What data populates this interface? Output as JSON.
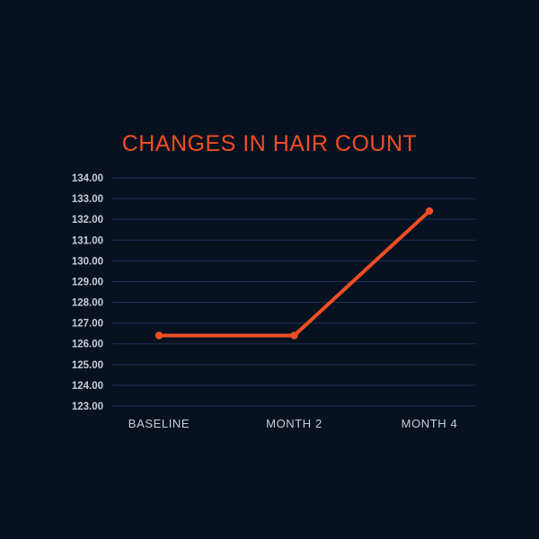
{
  "title": "CHANGES IN HAIR COUNT",
  "colors": {
    "background": "#081120",
    "accent": "#f04e24",
    "gridline": "#1c2e52",
    "ytick_label": "#c7ccd5",
    "xtick_label": "#c9ced6"
  },
  "chart_data": {
    "type": "line",
    "title": "CHANGES IN HAIR COUNT",
    "categories": [
      "BASELINE",
      "MONTH 2",
      "MONTH 4"
    ],
    "series": [
      {
        "name": "hair count",
        "values": [
          126.4,
          126.4,
          132.4
        ]
      }
    ],
    "xlabel": "",
    "ylabel": "",
    "ylim": [
      123,
      134
    ],
    "ytick_step": 1,
    "ytick_decimals": 2,
    "ytick_labels": [
      "123.00",
      "124.00",
      "125.00",
      "126.00",
      "127.00",
      "128.00",
      "129.00",
      "130.00",
      "131.00",
      "132.00",
      "133.00",
      "134.00"
    ],
    "grid": "horizontal",
    "legend": "none",
    "marker": "circle",
    "line_color": "#f04e24"
  }
}
